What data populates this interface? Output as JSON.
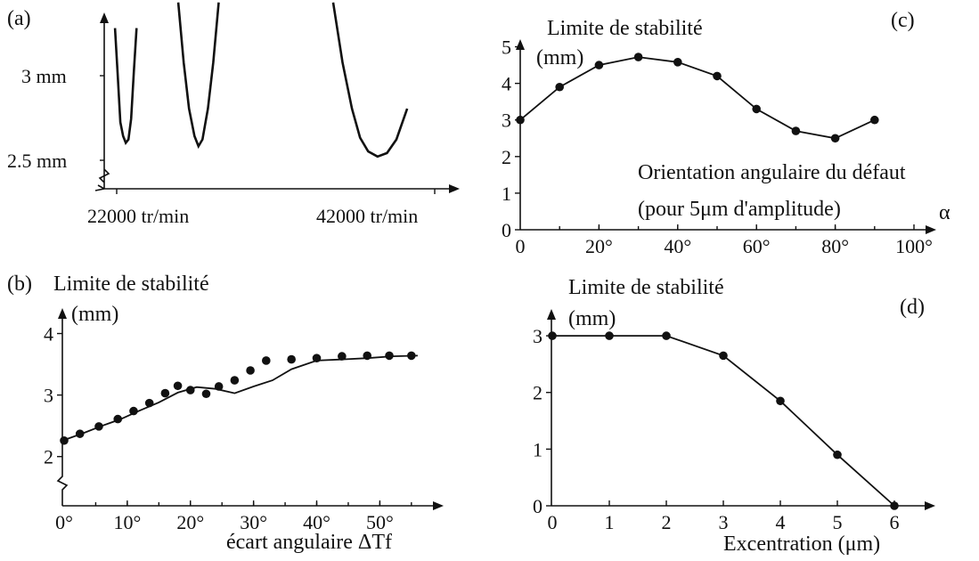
{
  "chart_data": [
    {
      "id": "a",
      "type": "line",
      "panel_label": "(a)",
      "y_tick_labels": [
        "3 mm",
        "2.5 mm"
      ],
      "x_tick_labels": [
        "22000 tr/min",
        "42000 tr/min"
      ],
      "x_range": [
        20000,
        46000
      ],
      "y_range": [
        2.4,
        3.3
      ],
      "series": [
        {
          "x": [
            20800,
            21000,
            21200,
            21400,
            21600,
            21800,
            22000,
            22200,
            22400
          ],
          "y": [
            3.25,
            2.98,
            2.7,
            2.62,
            2.58,
            2.6,
            2.72,
            3.0,
            3.25
          ]
        },
        {
          "x": [
            25500,
            25900,
            26300,
            26700,
            27000,
            27300,
            27700,
            28100,
            28500
          ],
          "y": [
            3.4,
            3.05,
            2.78,
            2.62,
            2.56,
            2.6,
            2.78,
            3.05,
            3.4
          ]
        },
        {
          "x": [
            37000,
            37700,
            38400,
            39000,
            39600,
            40300,
            41000,
            41700,
            42500
          ],
          "y": [
            3.4,
            3.05,
            2.78,
            2.61,
            2.53,
            2.5,
            2.52,
            2.6,
            2.78
          ]
        }
      ]
    },
    {
      "id": "b",
      "type": "line",
      "panel_label": "(b)",
      "ylabel_line1": "Limite de stabilité",
      "ylabel_line2": "(mm)",
      "xlabel": "écart angulaire ΔTf",
      "y_ticks": [
        "2",
        "3",
        "4"
      ],
      "x_ticks": [
        "0°",
        "10°",
        "20°",
        "30°",
        "40°",
        "50°"
      ],
      "x_range": [
        0,
        57
      ],
      "y_range": [
        1.2,
        4.5
      ],
      "x": [
        0,
        3,
        6,
        9,
        12,
        15,
        18,
        21,
        24,
        27,
        30,
        33,
        36,
        40,
        44,
        48,
        52,
        56
      ],
      "y": [
        2.27,
        2.38,
        2.5,
        2.61,
        2.75,
        2.88,
        3.04,
        3.13,
        3.1,
        3.03,
        3.14,
        3.24,
        3.42,
        3.56,
        3.58,
        3.6,
        3.63,
        3.64
      ],
      "markers": [
        0,
        2.5,
        5.5,
        8.5,
        11,
        13.5,
        16,
        18,
        20,
        22.5,
        24.5,
        27,
        29.5,
        32,
        36,
        40,
        44,
        48,
        51.5,
        55
      ],
      "marker_values": [
        2.26,
        2.37,
        2.49,
        2.61,
        2.74,
        2.87,
        3.03,
        3.15,
        3.08,
        3.02,
        3.14,
        3.24,
        3.4,
        3.56,
        3.58,
        3.6,
        3.63,
        3.64,
        3.64,
        3.64
      ]
    },
    {
      "id": "c",
      "type": "line",
      "panel_label": "(c)",
      "ylabel_line1": "Limite de stabilité",
      "ylabel_line2": "(mm)",
      "annotation_line1": "Orientation angulaire du défaut",
      "annotation_line2": "(pour 5μm d'amplitude)",
      "xlabel": "α",
      "y_ticks": [
        "0",
        "1",
        "2",
        "3",
        "4",
        "5"
      ],
      "x_ticks": [
        "0",
        "20°",
        "40°",
        "60°",
        "80°",
        "100°"
      ],
      "x_range": [
        0,
        100
      ],
      "y_range": [
        0,
        5.5
      ],
      "x": [
        0,
        10,
        20,
        30,
        40,
        50,
        60,
        70,
        80,
        90
      ],
      "y": [
        3.0,
        3.9,
        4.5,
        4.72,
        4.58,
        4.2,
        3.3,
        2.7,
        2.5,
        3.0
      ]
    },
    {
      "id": "d",
      "type": "line",
      "panel_label": "(d)",
      "ylabel_line1": "Limite de stabilité",
      "ylabel_line2": "(mm)",
      "xlabel": "Excentration (μm)",
      "y_ticks": [
        "0",
        "1",
        "2",
        "3"
      ],
      "x_ticks": [
        "0",
        "1",
        "2",
        "3",
        "4",
        "5",
        "6"
      ],
      "x_range": [
        0,
        6.5
      ],
      "y_range": [
        0,
        3.3
      ],
      "x": [
        0,
        1,
        2,
        3,
        4,
        5,
        6
      ],
      "y": [
        3.0,
        3.0,
        3.0,
        2.65,
        1.85,
        0.9,
        0.0
      ]
    }
  ]
}
